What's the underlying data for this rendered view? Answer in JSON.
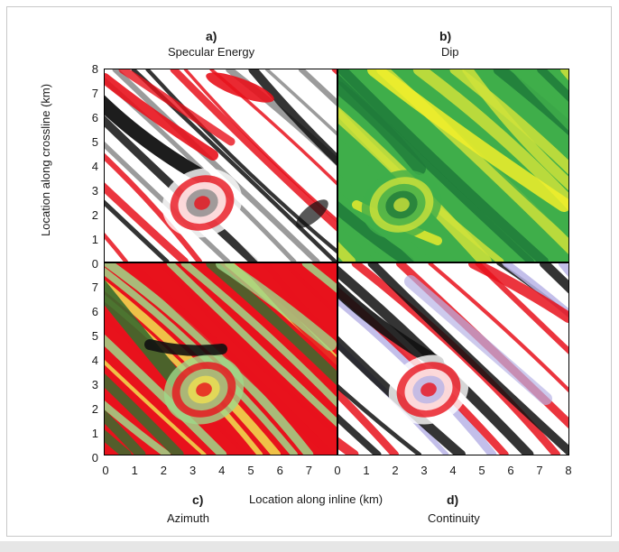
{
  "panels": {
    "a": {
      "letter": "a)",
      "title": "Specular Energy"
    },
    "b": {
      "letter": "b)",
      "title": "Dip"
    },
    "c": {
      "letter": "c)",
      "title": "Azimuth"
    },
    "d": {
      "letter": "d)",
      "title": "Continuity"
    }
  },
  "axes": {
    "xlabel": "Location along inline (km)",
    "ylabel": "Location along crossline (km)",
    "y_ticks_top": [
      "8",
      "7",
      "6",
      "5",
      "4",
      "3",
      "2",
      "1",
      "0"
    ],
    "y_ticks_bottom": [
      "7",
      "6",
      "5",
      "4",
      "3",
      "2",
      "1",
      "0"
    ],
    "x_ticks_left": [
      "0",
      "1",
      "2",
      "3",
      "4",
      "5",
      "6",
      "7"
    ],
    "x_ticks_right": [
      "0",
      "1",
      "2",
      "3",
      "4",
      "5",
      "6",
      "7",
      "8"
    ]
  },
  "colors": {
    "specular": [
      "#ffffff",
      "#e8121c",
      "#111111",
      "#8a8a8a"
    ],
    "dip": [
      "#1f7a3a",
      "#3fae4a",
      "#cfe23a",
      "#f2ee2a"
    ],
    "azimuth": [
      "#e8121c",
      "#9fd88a",
      "#f0e050",
      "#3a6b2e",
      "#111111"
    ],
    "continuity": [
      "#ffffff",
      "#e8121c",
      "#111111",
      "#b8b4e6"
    ]
  }
}
